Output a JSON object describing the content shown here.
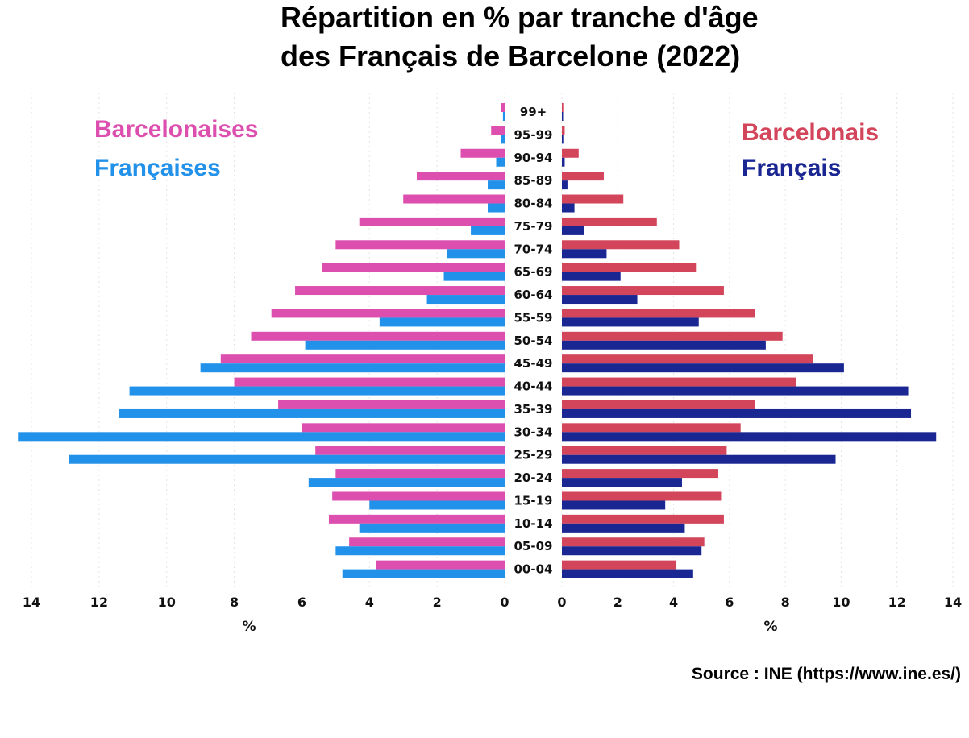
{
  "chart_data": {
    "type": "bar",
    "title": [
      "Répartition en % par tranche d'âge",
      "des Français de Barcelone (2022)"
    ],
    "categories": [
      "00-04",
      "05-09",
      "10-14",
      "15-19",
      "20-24",
      "25-29",
      "30-34",
      "35-39",
      "40-44",
      "45-49",
      "50-54",
      "55-59",
      "60-64",
      "65-69",
      "70-74",
      "75-79",
      "80-84",
      "85-89",
      "90-94",
      "95-99",
      "99+"
    ],
    "left": {
      "xlabel": "%",
      "xlim": [
        0,
        14
      ],
      "ticks": [
        "14",
        "12",
        "10",
        "8",
        "6",
        "4",
        "2",
        "0"
      ],
      "series": [
        {
          "name": "Barcelonaises",
          "color": "#dc4fae",
          "values": [
            3.8,
            4.6,
            5.2,
            5.1,
            5.0,
            5.6,
            6.0,
            6.7,
            8.0,
            8.4,
            7.5,
            6.9,
            6.2,
            5.4,
            5.0,
            4.3,
            3.0,
            2.6,
            1.3,
            0.4,
            0.1
          ]
        },
        {
          "name": "Françaises",
          "color": "#2191ea",
          "values": [
            4.8,
            5.0,
            4.3,
            4.0,
            5.8,
            12.9,
            14.4,
            11.4,
            11.1,
            9.0,
            5.9,
            3.7,
            2.3,
            1.8,
            1.7,
            1.0,
            0.5,
            0.5,
            0.25,
            0.1,
            0.05
          ]
        }
      ]
    },
    "right": {
      "xlabel": "%",
      "xlim": [
        0,
        14
      ],
      "ticks": [
        "0",
        "2",
        "4",
        "6",
        "8",
        "10",
        "12",
        "14"
      ],
      "series": [
        {
          "name": "Barcelonais",
          "color": "#d2455a",
          "values": [
            4.1,
            5.1,
            5.8,
            5.7,
            5.6,
            5.9,
            6.4,
            6.9,
            8.4,
            9.0,
            7.9,
            6.9,
            5.8,
            4.8,
            4.2,
            3.4,
            2.2,
            1.5,
            0.6,
            0.1,
            0.05
          ]
        },
        {
          "name": "Français",
          "color": "#1a2793",
          "values": [
            4.7,
            5.0,
            4.4,
            3.7,
            4.3,
            9.8,
            13.4,
            12.5,
            12.4,
            10.1,
            7.3,
            4.9,
            2.7,
            2.1,
            1.6,
            0.8,
            0.45,
            0.2,
            0.1,
            0.05,
            0.03
          ]
        }
      ]
    },
    "source": "Source : INE (https://www.ine.es/)"
  }
}
